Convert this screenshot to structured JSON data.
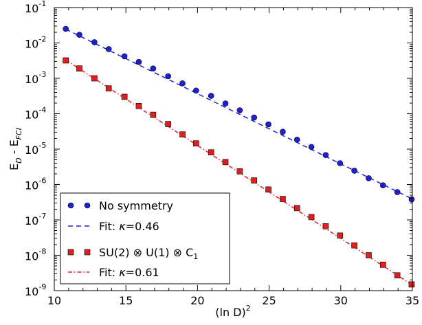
{
  "chart_data": {
    "type": "scatter",
    "x_scale": "linear",
    "y_scale": "log",
    "xlim": [
      10,
      35
    ],
    "ylim": [
      1e-09,
      0.1
    ],
    "grid": false,
    "legend_position": "bottom-left",
    "xlabel": "(ln D)",
    "xlabel_sup": "2",
    "ylabel_main": "E",
    "ylabel_sub1": "D",
    "ylabel_mid": " - E",
    "ylabel_sub2": "FCI",
    "x_ticks": [
      {
        "value": 10,
        "label": "10"
      },
      {
        "value": 15,
        "label": "15"
      },
      {
        "value": 20,
        "label": "20"
      },
      {
        "value": 25,
        "label": "25"
      },
      {
        "value": 30,
        "label": "30"
      },
      {
        "value": 35,
        "label": "35"
      }
    ],
    "y_ticks": [
      {
        "value": 0.1,
        "base": "10",
        "exp": "-1"
      },
      {
        "value": 0.01,
        "base": "10",
        "exp": "-2"
      },
      {
        "value": 0.001,
        "base": "10",
        "exp": "-3"
      },
      {
        "value": 0.0001,
        "base": "10",
        "exp": "-4"
      },
      {
        "value": 1e-05,
        "base": "10",
        "exp": "-5"
      },
      {
        "value": 1e-06,
        "base": "10",
        "exp": "-6"
      },
      {
        "value": 1e-07,
        "base": "10",
        "exp": "-7"
      },
      {
        "value": 1e-08,
        "base": "10",
        "exp": "-8"
      },
      {
        "value": 1e-09,
        "base": "10",
        "exp": "-9"
      }
    ],
    "series": [
      {
        "name": "No symmetry",
        "kind": "markers",
        "marker": "circle",
        "color": "#1f1fd6",
        "x": [
          10.8,
          11.75,
          12.8,
          13.8,
          14.9,
          15.9,
          16.9,
          17.95,
          18.95,
          19.9,
          20.95,
          21.95,
          22.95,
          23.95,
          24.95,
          25.95,
          26.95,
          27.95,
          28.95,
          29.95,
          30.95,
          31.95,
          32.95,
          33.95,
          34.95
        ],
        "y": [
          0.025,
          0.017,
          0.0105,
          0.0067,
          0.0042,
          0.0029,
          0.0019,
          0.00115,
          0.00072,
          0.00045,
          0.00032,
          0.000195,
          0.000125,
          7.8e-05,
          5e-05,
          3.1e-05,
          1.85e-05,
          1.15e-05,
          6.8e-06,
          4e-06,
          2.45e-06,
          1.5e-06,
          9.5e-07,
          6.1e-07,
          3.8e-07
        ]
      },
      {
        "name": "Fit: κ=0.46",
        "kind": "fit",
        "style": "dashed",
        "color": "#1f1fd6",
        "x": [
          10.8,
          35
        ],
        "y": [
          0.0245,
          3.9e-07
        ]
      },
      {
        "name": "SU(2) ⊗ U(1) ⊗ C₁",
        "kind": "markers",
        "marker": "square",
        "color": "#e02020",
        "x": [
          10.8,
          11.75,
          12.8,
          13.8,
          14.9,
          15.9,
          16.9,
          17.95,
          18.95,
          19.9,
          20.95,
          21.95,
          22.95,
          23.95,
          24.95,
          25.95,
          26.95,
          27.95,
          28.95,
          29.95,
          30.95,
          31.95,
          32.95,
          33.95,
          34.95
        ],
        "y": [
          0.0032,
          0.0019,
          0.001,
          0.00052,
          0.0003,
          0.000165,
          9.3e-05,
          5.1e-05,
          2.6e-05,
          1.45e-05,
          8.1e-06,
          4.3e-06,
          2.35e-06,
          1.3e-06,
          7.2e-07,
          3.9e-07,
          2.15e-07,
          1.2e-07,
          6.6e-08,
          3.6e-08,
          1.9e-08,
          1e-08,
          5.4e-09,
          2.7e-09,
          1.5e-09
        ]
      },
      {
        "name": "Fit: κ=0.61",
        "kind": "fit",
        "style": "dashdot",
        "color": "#e02020",
        "x": [
          10.8,
          35
        ],
        "y": [
          0.0033,
          1.45e-09
        ]
      }
    ],
    "legend": {
      "entries": [
        {
          "label": "No symmetry"
        },
        {
          "label_prefix": "Fit: ",
          "label_symbol": "κ",
          "label_value": "=0.46"
        },
        {
          "label_part1": "SU(2) ",
          "label_otimes1": "⊗",
          "label_part2": " U(1) ",
          "label_otimes2": "⊗",
          "label_part3": " C",
          "label_sub": "1"
        },
        {
          "label_prefix": "Fit: ",
          "label_symbol": "κ",
          "label_value": "=0.61"
        }
      ]
    }
  }
}
